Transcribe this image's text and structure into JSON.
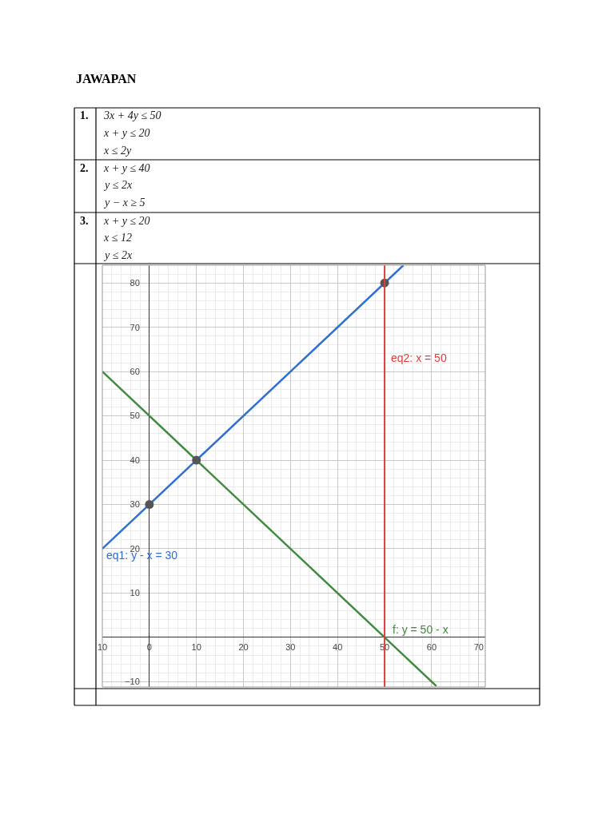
{
  "chart_data": {
    "type": "line",
    "title": "JAWAPAN",
    "annotations": [
      "1.",
      "3x + 4y ≤ 50",
      "x + y ≤ 20",
      "x ≤ 2y",
      "2.",
      "x + y ≤ 40",
      "y ≤ 2x",
      "y − x ≥ 5",
      "3.",
      "x + y ≤ 20",
      "x ≤ 12",
      "y ≤ 2x"
    ],
    "series": [
      {
        "name": "eq1: y - x = 30",
        "color": "#2e6fcf",
        "x": [
          -10,
          54
        ],
        "values": [
          20,
          84
        ]
      },
      {
        "name": "f: y = 50 - x",
        "color": "#3f8a3f",
        "x": [
          -10,
          61
        ],
        "values": [
          60,
          -11
        ]
      },
      {
        "type": "scatter",
        "color": "#555555",
        "marker": "circle",
        "x": [
          0,
          10,
          50
        ],
        "values": [
          30,
          40,
          80
        ]
      }
    ],
    "ref_lines": [
      {
        "axis": "x",
        "value": 50,
        "label": "eq2: x = 50",
        "color": "#e03c3c"
      }
    ],
    "xlim": [
      -10,
      71.4
    ],
    "ylim": [
      -11.2,
      84
    ],
    "xticks": [
      {
        "value": -10,
        "label": "10"
      },
      0,
      10,
      20,
      30,
      40,
      50,
      60,
      70
    ],
    "yticks": [
      {
        "value": -10,
        "label": "−10"
      },
      10,
      20,
      30,
      40,
      50,
      60,
      70,
      80
    ],
    "grid": true,
    "legend": false
  }
}
